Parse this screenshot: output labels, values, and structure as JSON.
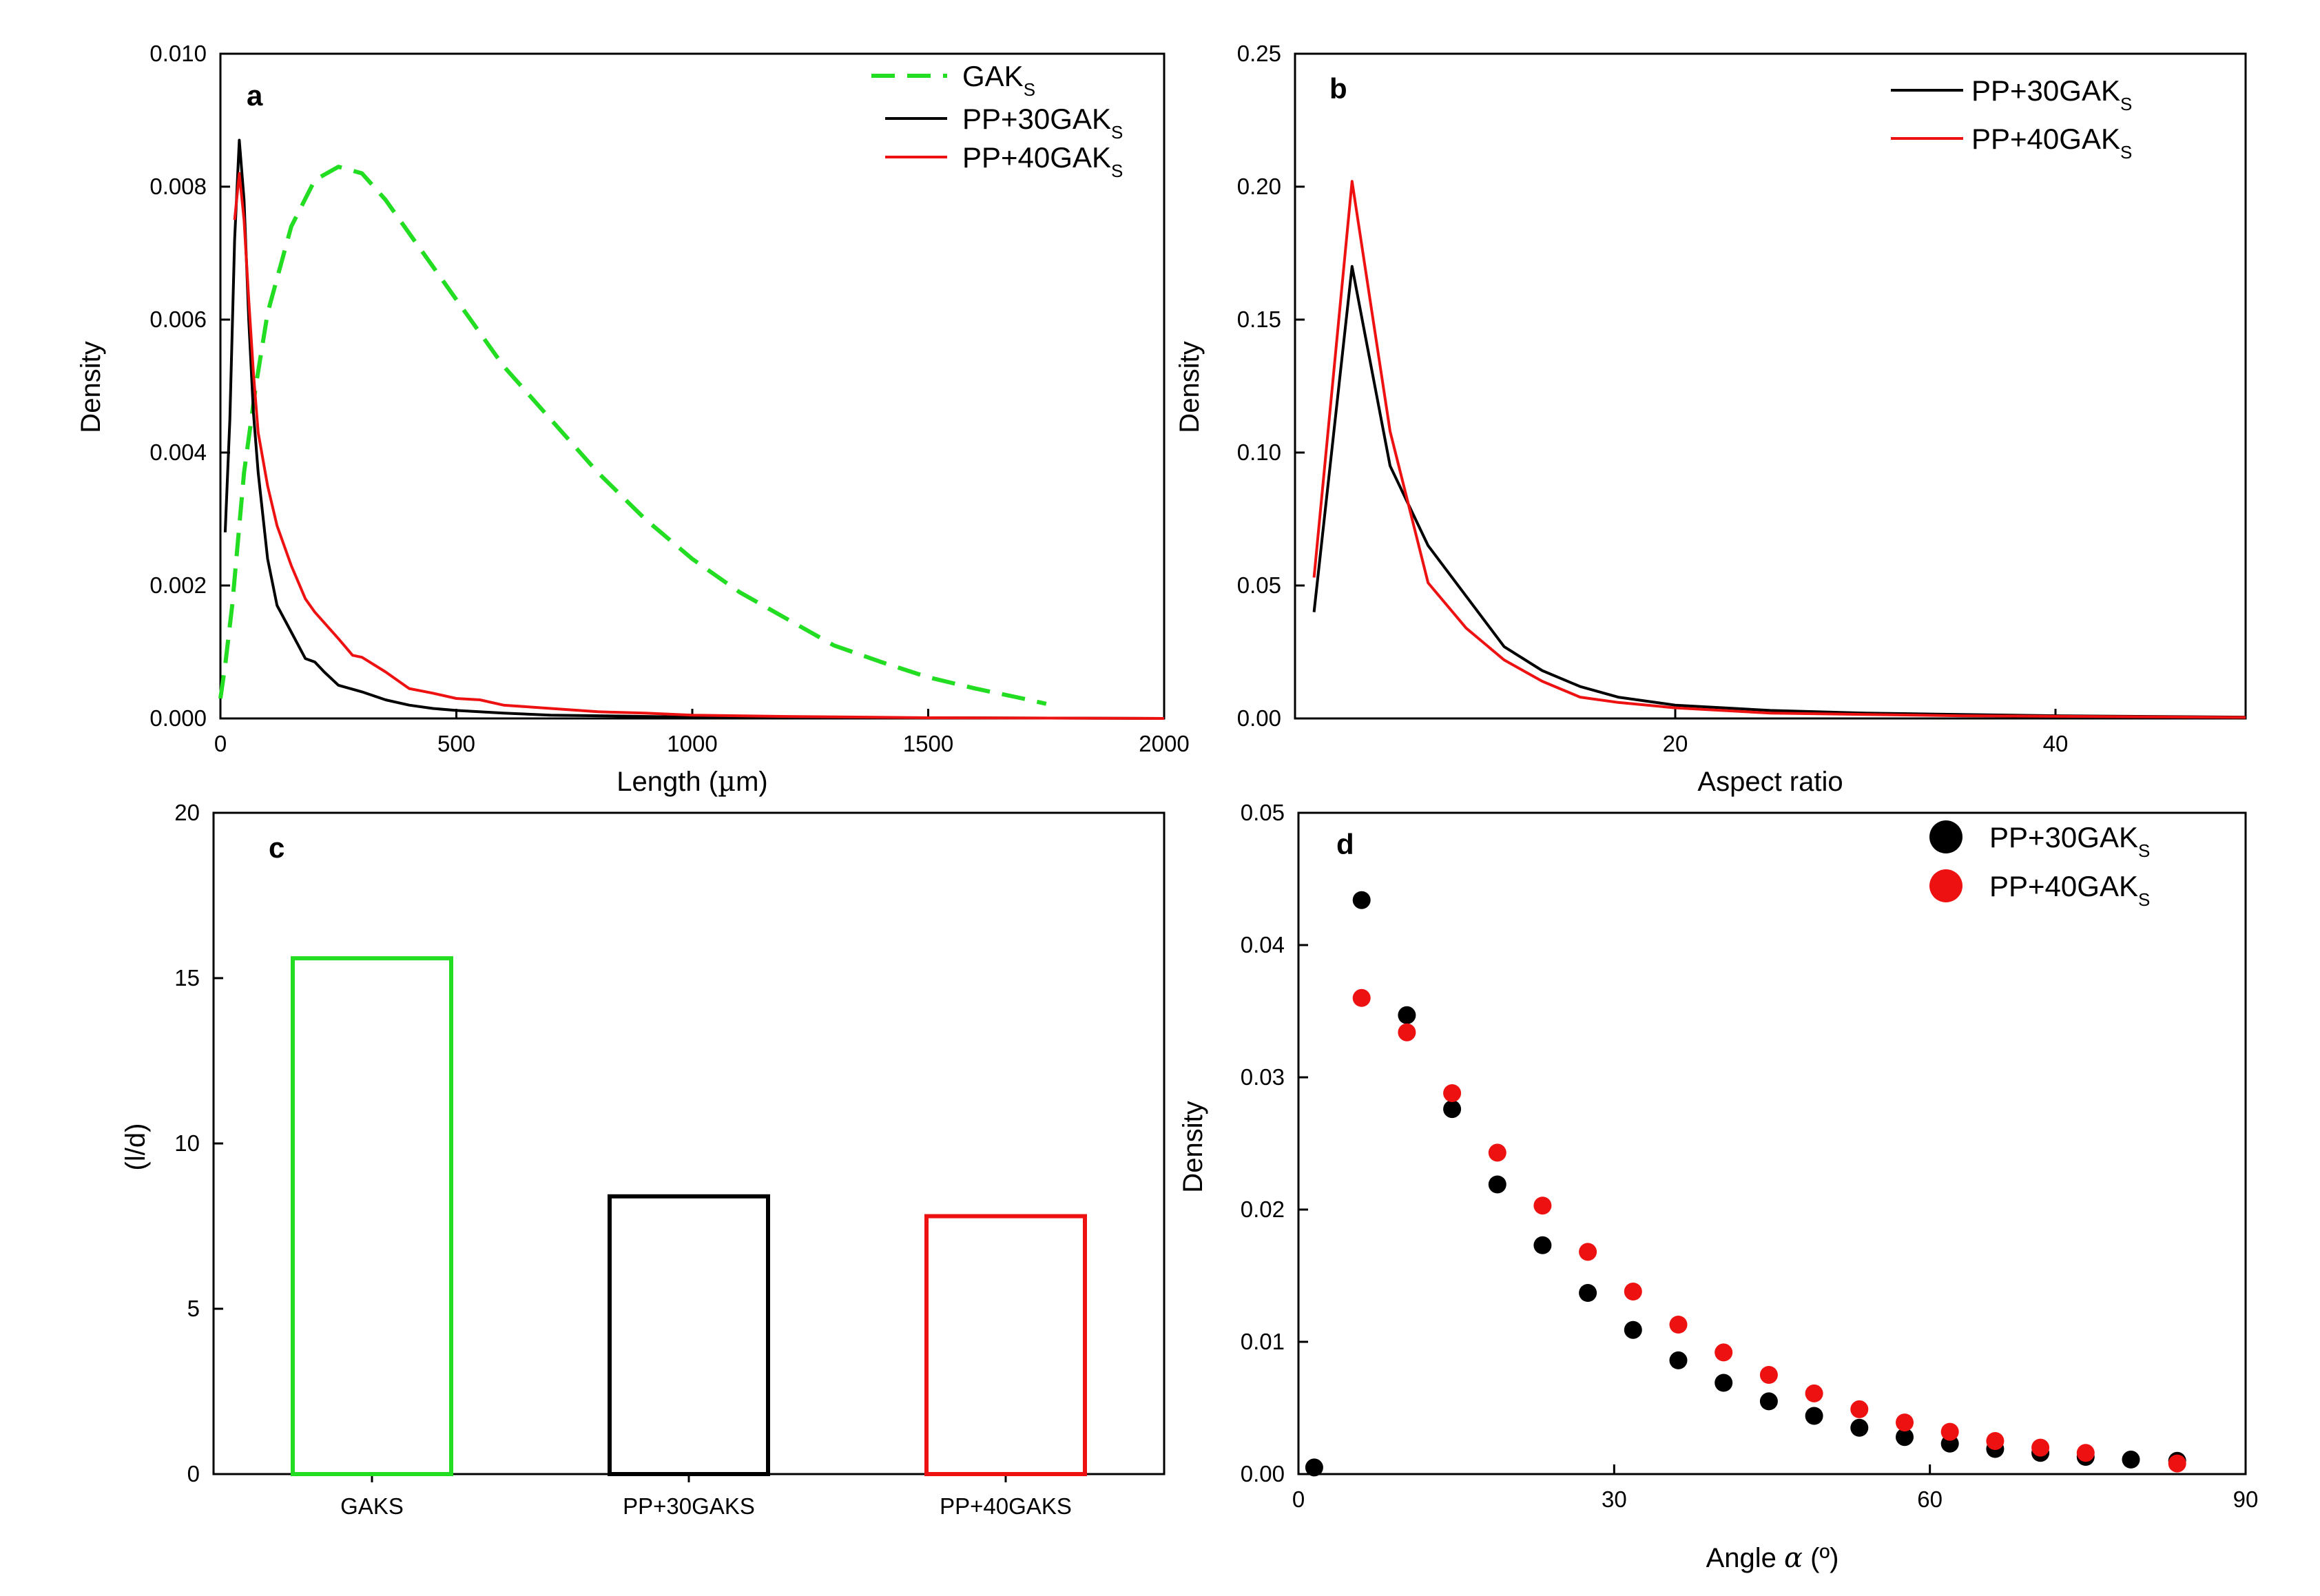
{
  "chart_data": [
    {
      "id": "a",
      "type": "line",
      "panel_label": "a",
      "xlabel_prefix": "Length (",
      "xlabel_mu": "µ",
      "xlabel_suffix": "m)",
      "ylabel": "Density",
      "xlim": [
        0,
        2000
      ],
      "ylim": [
        0,
        0.01
      ],
      "xticks": [
        0,
        500,
        1000,
        1500,
        2000
      ],
      "yticks": [
        "0.000",
        "0.002",
        "0.004",
        "0.006",
        "0.008",
        "0.010"
      ],
      "legend_position": "top-right",
      "series": [
        {
          "name": "GAK",
          "name_sub": "S",
          "color": "#22dd22",
          "dash": "dashed",
          "x": [
            0,
            10,
            25,
            50,
            75,
            100,
            150,
            200,
            250,
            300,
            350,
            400,
            450,
            500,
            550,
            600,
            700,
            800,
            900,
            1000,
            1100,
            1200,
            1300,
            1400,
            1500,
            1600,
            1700,
            1750
          ],
          "y": [
            0.0003,
            0.0008,
            0.0017,
            0.0037,
            0.005,
            0.0061,
            0.0074,
            0.0081,
            0.0083,
            0.0082,
            0.0078,
            0.0073,
            0.0068,
            0.0063,
            0.0058,
            0.0053,
            0.0045,
            0.0037,
            0.003,
            0.0024,
            0.0019,
            0.0015,
            0.0011,
            0.00085,
            0.00062,
            0.00045,
            0.0003,
            0.00022
          ]
        },
        {
          "name": "PP+30GAK",
          "name_sub": "S",
          "color": "#000000",
          "dash": "solid",
          "x": [
            10,
            20,
            30,
            40,
            50,
            60,
            70,
            80,
            100,
            120,
            150,
            180,
            200,
            220,
            250,
            300,
            350,
            400,
            450,
            500,
            600,
            700,
            800,
            1000,
            1200,
            1500,
            2000
          ],
          "y": [
            0.0028,
            0.0045,
            0.0072,
            0.0087,
            0.0078,
            0.006,
            0.0046,
            0.0037,
            0.0024,
            0.0017,
            0.0013,
            0.0009,
            0.00085,
            0.0007,
            0.0005,
            0.0004,
            0.00028,
            0.0002,
            0.00015,
            0.00012,
            8e-05,
            5e-05,
            4e-05,
            2e-05,
            1e-05,
            1e-05,
            0.0
          ]
        },
        {
          "name": "PP+40GAK",
          "name_sub": "S",
          "color": "#ee1111",
          "dash": "solid",
          "x": [
            30,
            40,
            50,
            60,
            70,
            80,
            100,
            120,
            150,
            180,
            200,
            250,
            280,
            300,
            350,
            400,
            450,
            500,
            550,
            600,
            700,
            800,
            900,
            1000,
            1200,
            1500,
            2000
          ],
          "y": [
            0.0075,
            0.0082,
            0.0075,
            0.0063,
            0.0052,
            0.0043,
            0.0035,
            0.0029,
            0.0023,
            0.0018,
            0.0016,
            0.0012,
            0.00095,
            0.00092,
            0.0007,
            0.00045,
            0.00038,
            0.0003,
            0.00028,
            0.0002,
            0.00015,
            0.0001,
            8e-05,
            5e-05,
            3e-05,
            1e-05,
            0.0
          ]
        }
      ]
    },
    {
      "id": "b",
      "type": "line",
      "panel_label": "b",
      "xlabel": "Aspect ratio",
      "ylabel": "Density",
      "xlim": [
        0,
        50
      ],
      "ylim": [
        0,
        0.25
      ],
      "xticks": [
        20,
        40
      ],
      "yticks": [
        "0.00",
        "0.05",
        "0.10",
        "0.15",
        "0.20",
        "0.25"
      ],
      "legend_position": "top-right",
      "series": [
        {
          "name": "PP+30GAK",
          "name_sub": "S",
          "color": "#000000",
          "dash": "solid",
          "x": [
            1,
            3,
            5,
            7,
            9,
            11,
            13,
            15,
            17,
            20,
            25,
            30,
            35,
            40,
            50
          ],
          "y": [
            0.04,
            0.17,
            0.095,
            0.065,
            0.046,
            0.027,
            0.018,
            0.012,
            0.008,
            0.005,
            0.003,
            0.002,
            0.0015,
            0.001,
            0.0005
          ]
        },
        {
          "name": "PP+40GAK",
          "name_sub": "S",
          "color": "#ee1111",
          "dash": "solid",
          "x": [
            1,
            3,
            5,
            7,
            9,
            11,
            13,
            15,
            17,
            20,
            25,
            30,
            35,
            40,
            50
          ],
          "y": [
            0.053,
            0.202,
            0.108,
            0.051,
            0.034,
            0.022,
            0.014,
            0.008,
            0.006,
            0.004,
            0.002,
            0.0015,
            0.001,
            0.0008,
            0.0004
          ]
        }
      ]
    },
    {
      "id": "c",
      "type": "bar",
      "panel_label": "c",
      "ylabel": "(l/d)",
      "ylim": [
        0,
        20
      ],
      "yticks": [
        0,
        5,
        10,
        15,
        20
      ],
      "categories": [
        "GAKS",
        "PP+30GAKS",
        "PP+40GAKS"
      ],
      "values": [
        15.6,
        8.4,
        7.8
      ],
      "colors": [
        "#22dd22",
        "#000000",
        "#ee1111"
      ]
    },
    {
      "id": "d",
      "type": "scatter",
      "panel_label": "d",
      "xlabel_prefix": "Angle ",
      "xlabel_alpha": "α",
      "xlabel_suffix": " (º)",
      "ylabel": "Density",
      "xlim": [
        0,
        90
      ],
      "ylim": [
        0,
        0.05
      ],
      "xticks": [
        0,
        30,
        60,
        90
      ],
      "yticks": [
        "0.00",
        "0.01",
        "0.02",
        "0.03",
        "0.04",
        "0.05"
      ],
      "legend_position": "top-right",
      "series": [
        {
          "name": "PP+30GAK",
          "name_sub": "S",
          "color": "#000000",
          "x": [
            1.5,
            6,
            10.3,
            14.6,
            18.9,
            23.2,
            27.5,
            31.8,
            36.1,
            40.4,
            44.7,
            49,
            53.3,
            57.6,
            61.9,
            66.2,
            70.5,
            74.8,
            79.1,
            83.5
          ],
          "y": [
            0.0005,
            0.0434,
            0.0347,
            0.0276,
            0.0219,
            0.0173,
            0.0137,
            0.0109,
            0.0086,
            0.0069,
            0.0055,
            0.0044,
            0.0035,
            0.0028,
            0.0023,
            0.0019,
            0.0016,
            0.0013,
            0.0011,
            0.001
          ]
        },
        {
          "name": "PP+40GAK",
          "name_sub": "S",
          "color": "#ee1111",
          "x": [
            6,
            10.3,
            14.6,
            18.9,
            23.2,
            27.5,
            31.8,
            36.1,
            40.4,
            44.7,
            49,
            53.3,
            57.6,
            61.9,
            66.2,
            70.5,
            74.8,
            83.5
          ],
          "y": [
            0.036,
            0.0334,
            0.0288,
            0.0243,
            0.0203,
            0.0168,
            0.0138,
            0.0113,
            0.0092,
            0.0075,
            0.0061,
            0.0049,
            0.0039,
            0.0032,
            0.0025,
            0.002,
            0.0016,
            0.0008
          ]
        }
      ]
    }
  ]
}
